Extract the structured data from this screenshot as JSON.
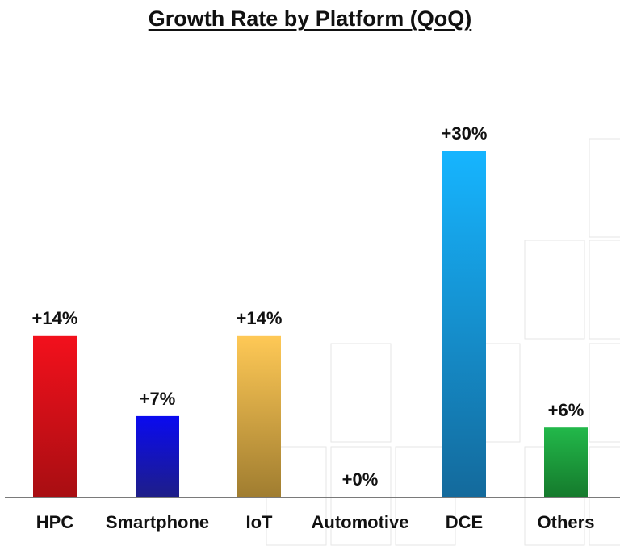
{
  "chart_data": {
    "type": "bar",
    "title": "Growth Rate by Platform (QoQ)",
    "categories": [
      "HPC",
      "Smartphone",
      "IoT",
      "Automotive",
      "DCE",
      "Others"
    ],
    "values": [
      14,
      7,
      14,
      0,
      30,
      6
    ],
    "value_labels": [
      "+14%",
      "+7%",
      "+14%",
      "+0%",
      "+30%",
      "+6%"
    ],
    "unit": "%",
    "xlabel": "",
    "ylabel": "",
    "ylim": [
      0,
      30
    ],
    "grid": false,
    "legend": "none",
    "colors": {
      "HPC": [
        "#f3101c",
        "#a80e12"
      ],
      "Smartphone": [
        "#0a0af0",
        "#1e1e88"
      ],
      "IoT": [
        "#ffc956",
        "#a07d30"
      ],
      "Automotive": [
        "#888888",
        "#555555"
      ],
      "DCE": [
        "#16b5ff",
        "#146a9c"
      ],
      "Others": [
        "#22b84a",
        "#157a2c"
      ]
    }
  }
}
